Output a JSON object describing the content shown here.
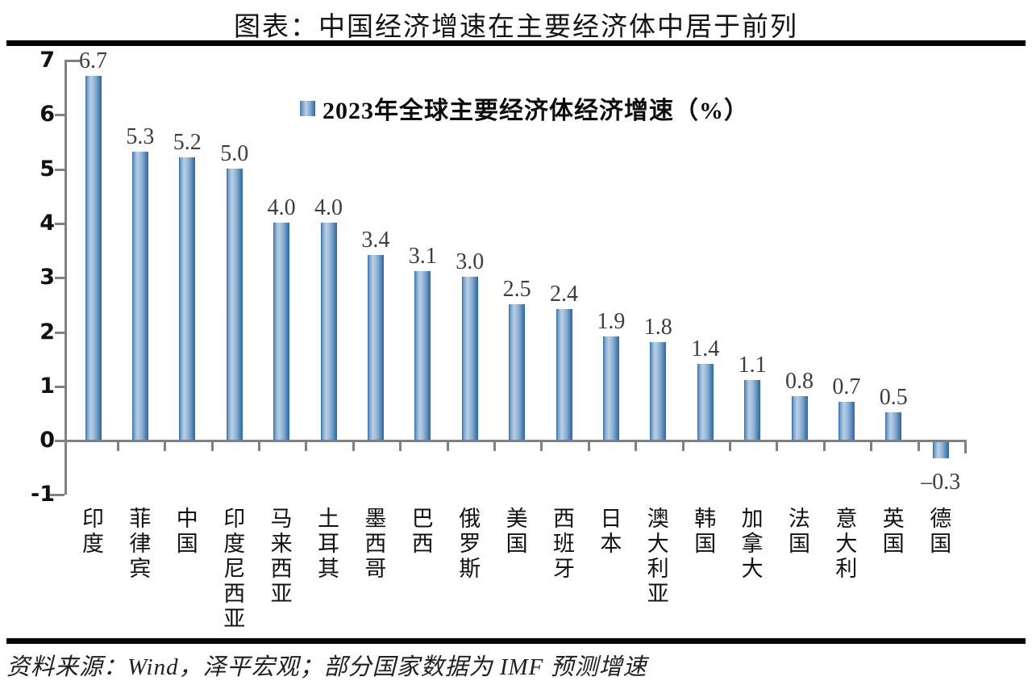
{
  "title": "图表：中国经济增速在主要经济体中居于前列",
  "source": "资料来源：Wind，泽平宏观；部分国家数据为 IMF 预测增速",
  "y_axis": {
    "tick_labels": [
      "7",
      "6",
      "5",
      "4",
      "3",
      "2",
      "1",
      "0",
      "-1"
    ]
  },
  "colors": {
    "bar_dark": "#2b67a9",
    "bar_light": "#bacee2",
    "axis": "#808080",
    "value_label": "#3d3d3d",
    "rule": "#050505"
  },
  "chart_data": {
    "type": "bar",
    "title": "2023年全球主要经济体经济增速（%）",
    "categories": [
      "印度",
      "菲律宾",
      "中国",
      "印度尼西亚",
      "马来西亚",
      "土耳其",
      "墨西哥",
      "巴西",
      "俄罗斯",
      "美国",
      "西班牙",
      "日本",
      "澳大利亚",
      "韩国",
      "加拿大",
      "法国",
      "意大利",
      "英国",
      "德国"
    ],
    "values": [
      6.7,
      5.3,
      5.2,
      5.0,
      4.0,
      4.0,
      3.4,
      3.1,
      3.0,
      2.5,
      2.4,
      1.9,
      1.8,
      1.4,
      1.1,
      0.8,
      0.7,
      0.5,
      -0.3
    ],
    "value_labels": [
      "6.7",
      "5.3",
      "5.2",
      "5.0",
      "4.0",
      "4.0",
      "3.4",
      "3.1",
      "3.0",
      "2.5",
      "2.4",
      "1.9",
      "1.8",
      "1.4",
      "1.1",
      "0.8",
      "0.7",
      "0.5",
      "–0.3"
    ],
    "ylim": [
      -1,
      7
    ],
    "grid": false,
    "legend_position": "top-center"
  }
}
